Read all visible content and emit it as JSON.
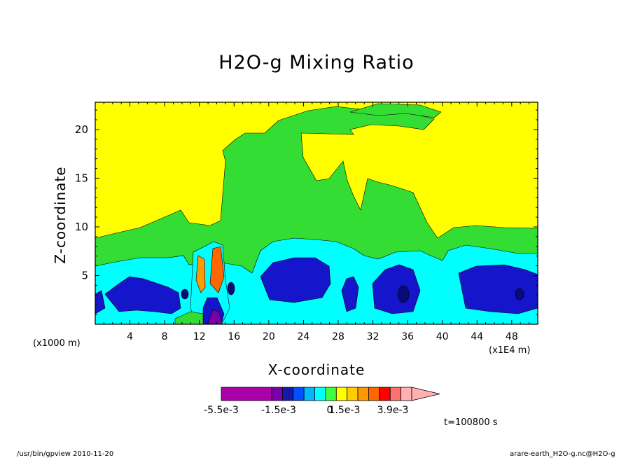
{
  "chart_data": {
    "type": "heatmap",
    "title": "H2O-g Mixing Ratio",
    "xlabel": "X-coordinate",
    "ylabel": "Z-coordinate",
    "x_unit_left": "(x1000 m)",
    "x_unit_right": "(x1E4 m)",
    "x_ticks": [
      "4",
      "8",
      "12",
      "16",
      "20",
      "24",
      "28",
      "32",
      "36",
      "40",
      "44",
      "48"
    ],
    "x_tick_values": [
      4,
      8,
      12,
      16,
      20,
      24,
      28,
      32,
      36,
      40,
      44,
      48
    ],
    "y_ticks": [
      "5",
      "10",
      "15",
      "20"
    ],
    "y_tick_values": [
      5,
      10,
      15,
      20
    ],
    "xlim": [
      0,
      51
    ],
    "ylim": [
      0,
      22.8
    ],
    "colorbar": {
      "labels": [
        "-5.5e-3",
        "-1.5e-3",
        "0",
        "1.5e-3",
        "3.9e-3"
      ],
      "colors": [
        "#aa00aa",
        "#aa00aa",
        "#7a00aa",
        "#1818a8",
        "#0050ff",
        "#00b8ff",
        "#00ffff",
        "#40ff40",
        "#ffff00",
        "#ffcc00",
        "#ff9900",
        "#ff6600",
        "#ff0000",
        "#ff7070",
        "#ffb0b0"
      ]
    },
    "regions": {
      "background_color": "#ffff00",
      "moist_layer_color": "#33dd33",
      "low_layer_color": "#00ffff",
      "dry_cells_color": "#1515cc",
      "dry_core_color": "#0a0a7a",
      "positive_anomaly_colors": [
        "#ff9900",
        "#ff6600"
      ]
    }
  },
  "time_label": "t=100800 s",
  "footer": {
    "left": "/usr/bin/gpview   2010-11-20",
    "right": "arare-earth_H2O-g.nc@H2O-g"
  }
}
